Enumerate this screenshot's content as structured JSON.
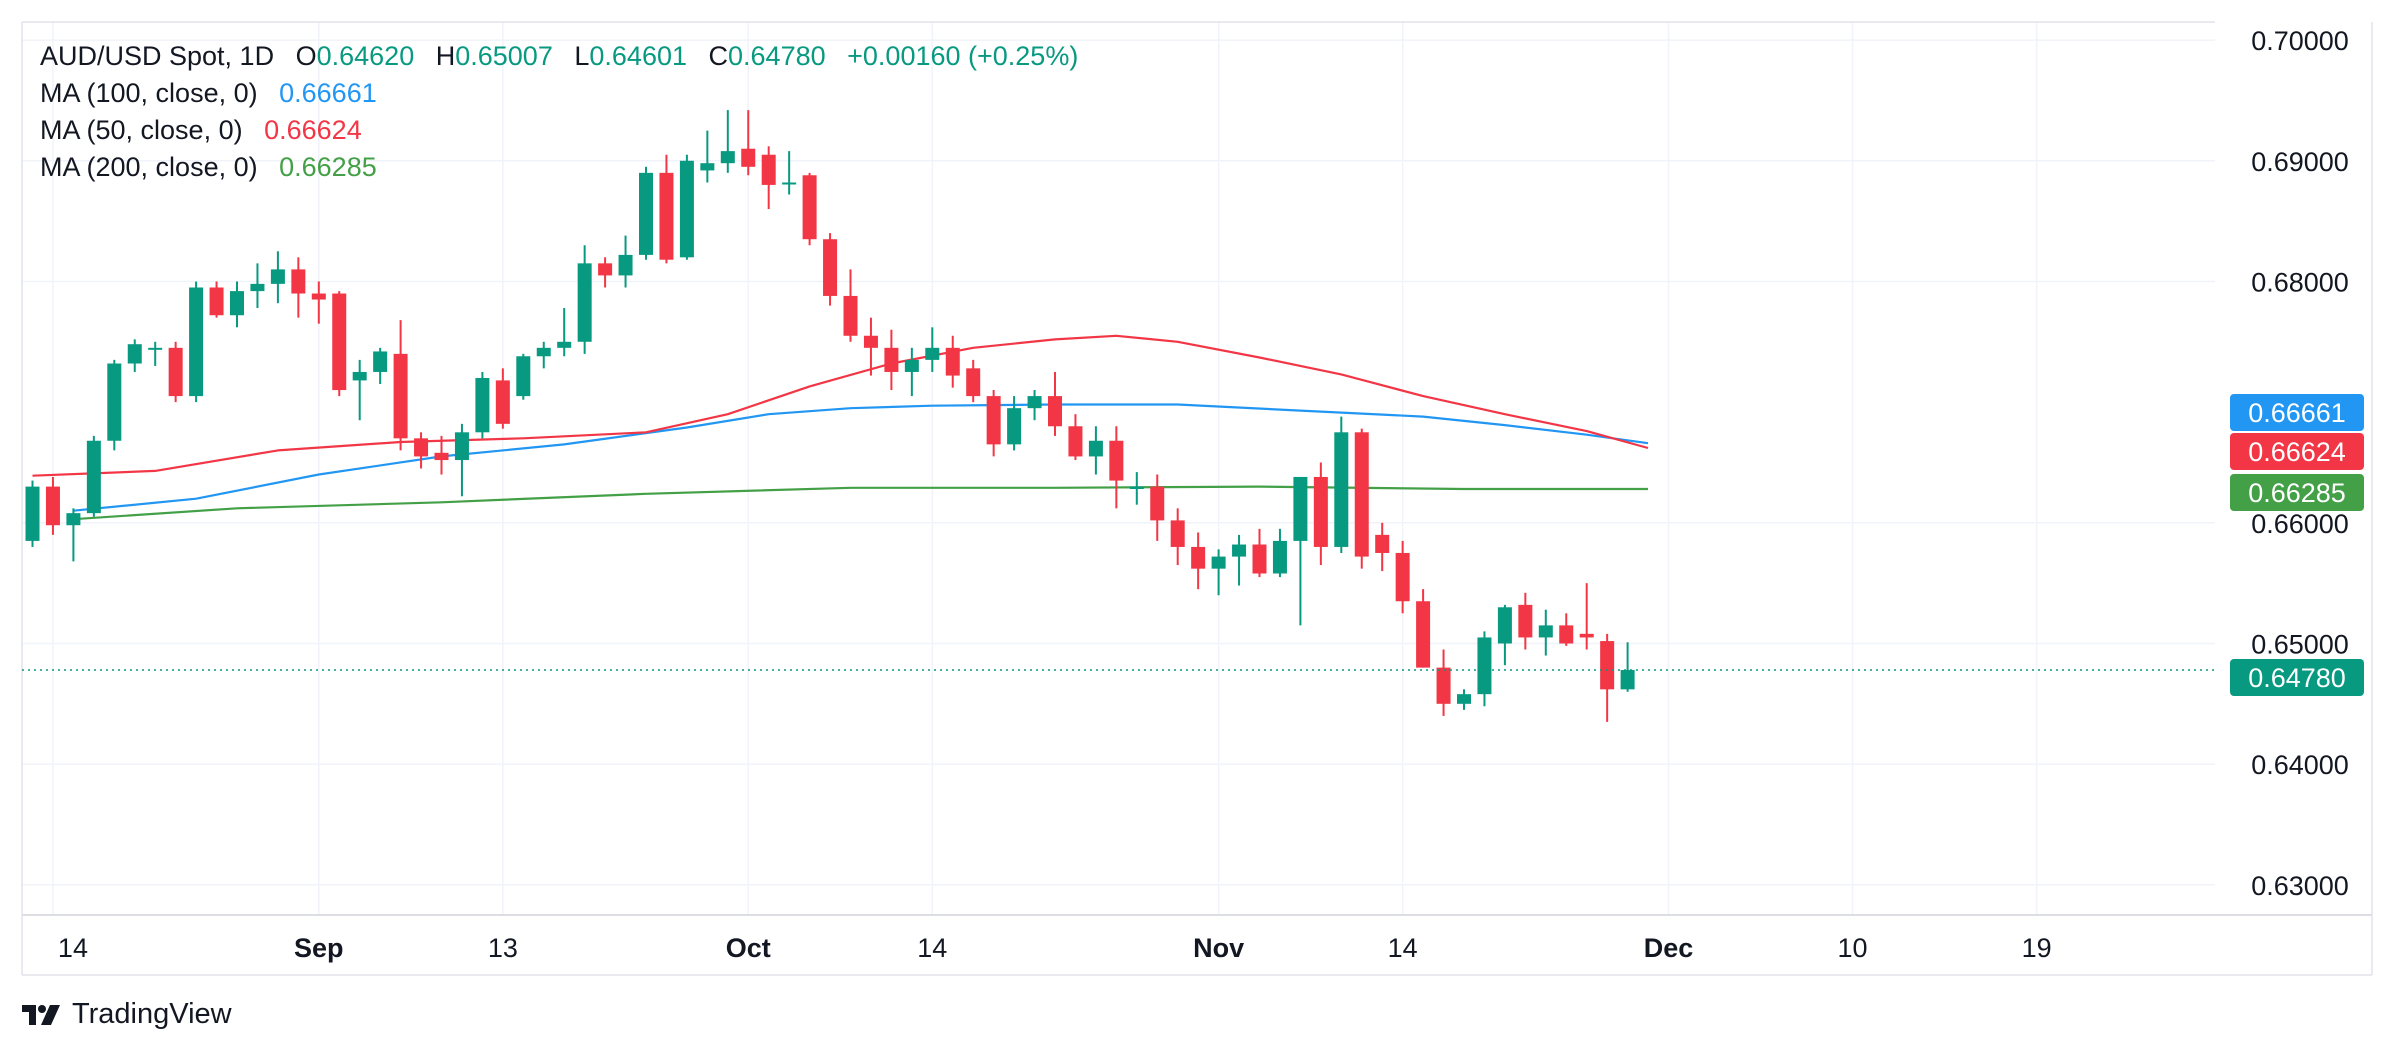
{
  "legend": {
    "symbol": "AUD/USD Spot, 1D",
    "open_label": "O",
    "open": "0.64620",
    "high_label": "H",
    "high": "0.65007",
    "low_label": "L",
    "low": "0.64601",
    "close_label": "C",
    "close": "0.64780",
    "change": "+0.00160 (+0.25%)",
    "ma100_label": "MA (100, close, 0)",
    "ma100_value": "0.66661",
    "ma50_label": "MA (50, close, 0)",
    "ma50_value": "0.66624",
    "ma200_label": "MA (200, close, 0)",
    "ma200_value": "0.66285"
  },
  "brand": {
    "name": "TradingView"
  },
  "colors": {
    "up": "#089981",
    "down": "#f23645",
    "ma100": "#2196f3",
    "ma50": "#f23645",
    "ma200": "#43a047",
    "grid": "#f0f3fa",
    "text": "#131722"
  },
  "chart_data": {
    "type": "candlestick",
    "title": "AUD/USD Spot, 1D",
    "ylim": [
      0.6275,
      0.7015
    ],
    "y_ticks": [
      "0.70000",
      "0.69000",
      "0.68000",
      "0.66000",
      "0.65000",
      "0.64000",
      "0.63000"
    ],
    "x_ticks": [
      {
        "label": "14",
        "bar": 1,
        "bold": false
      },
      {
        "label": "Sep",
        "bar": 14,
        "bold": true
      },
      {
        "label": "13",
        "bar": 23,
        "bold": false
      },
      {
        "label": "Oct",
        "bar": 35,
        "bold": true
      },
      {
        "label": "14",
        "bar": 44,
        "bold": false
      },
      {
        "label": "Nov",
        "bar": 58,
        "bold": true
      },
      {
        "label": "14",
        "bar": 67,
        "bold": false
      },
      {
        "label": "Dec",
        "bar": 80,
        "bold": true
      },
      {
        "label": "10",
        "bar": 89,
        "bold": false
      },
      {
        "label": "19",
        "bar": 98,
        "bold": false
      }
    ],
    "last_price": 0.6478,
    "price_labels": [
      {
        "name": "MA 100",
        "value": "0.66661",
        "color": "#2196f3",
        "y": 0.66661
      },
      {
        "name": "MA 50",
        "value": "0.66624",
        "color": "#f23645",
        "y": 0.66624
      },
      {
        "name": "MA 200",
        "value": "0.66285",
        "color": "#43a047",
        "y": 0.66285
      },
      {
        "name": "Close",
        "value": "0.64780",
        "color": "#089981",
        "y": 0.6478
      }
    ],
    "ohlc": [
      [
        0.6585,
        0.6635,
        0.658,
        0.663
      ],
      [
        0.663,
        0.6638,
        0.659,
        0.6598
      ],
      [
        0.6598,
        0.6612,
        0.6568,
        0.6608
      ],
      [
        0.6608,
        0.6672,
        0.6605,
        0.6668
      ],
      [
        0.6668,
        0.6735,
        0.666,
        0.6732
      ],
      [
        0.6732,
        0.6752,
        0.6725,
        0.6748
      ],
      [
        0.6745,
        0.675,
        0.673,
        0.6745
      ],
      [
        0.6745,
        0.675,
        0.67,
        0.6705
      ],
      [
        0.6705,
        0.68,
        0.67,
        0.6795
      ],
      [
        0.6795,
        0.68,
        0.677,
        0.6772
      ],
      [
        0.6772,
        0.68,
        0.6762,
        0.6792
      ],
      [
        0.6792,
        0.6815,
        0.6778,
        0.6798
      ],
      [
        0.6798,
        0.6825,
        0.6782,
        0.681
      ],
      [
        0.681,
        0.682,
        0.677,
        0.679
      ],
      [
        0.679,
        0.68,
        0.6765,
        0.6785
      ],
      [
        0.679,
        0.6792,
        0.6705,
        0.671
      ],
      [
        0.6718,
        0.6735,
        0.6685,
        0.6725
      ],
      [
        0.6725,
        0.6745,
        0.6715,
        0.6742
      ],
      [
        0.674,
        0.6768,
        0.666,
        0.667
      ],
      [
        0.667,
        0.6675,
        0.6645,
        0.6655
      ],
      [
        0.6658,
        0.6672,
        0.664,
        0.6652
      ],
      [
        0.6652,
        0.6682,
        0.6622,
        0.6675
      ],
      [
        0.6675,
        0.6725,
        0.667,
        0.672
      ],
      [
        0.6718,
        0.6728,
        0.6678,
        0.6682
      ],
      [
        0.6705,
        0.674,
        0.6702,
        0.6738
      ],
      [
        0.6738,
        0.675,
        0.6728,
        0.6745
      ],
      [
        0.6745,
        0.6778,
        0.6738,
        0.675
      ],
      [
        0.675,
        0.683,
        0.674,
        0.6815
      ],
      [
        0.6815,
        0.682,
        0.6795,
        0.6805
      ],
      [
        0.6805,
        0.6838,
        0.6795,
        0.6822
      ],
      [
        0.6822,
        0.6895,
        0.6818,
        0.689
      ],
      [
        0.689,
        0.6905,
        0.6815,
        0.6818
      ],
      [
        0.682,
        0.6905,
        0.6818,
        0.69
      ],
      [
        0.6892,
        0.6925,
        0.6882,
        0.6898
      ],
      [
        0.6898,
        0.6942,
        0.689,
        0.6908
      ],
      [
        0.691,
        0.6942,
        0.6888,
        0.6895
      ],
      [
        0.6905,
        0.6912,
        0.686,
        0.688
      ],
      [
        0.6882,
        0.6908,
        0.6872,
        0.6882
      ],
      [
        0.6888,
        0.689,
        0.683,
        0.6835
      ],
      [
        0.6835,
        0.684,
        0.678,
        0.6788
      ],
      [
        0.6788,
        0.681,
        0.675,
        0.6755
      ],
      [
        0.6755,
        0.677,
        0.6722,
        0.6745
      ],
      [
        0.6745,
        0.676,
        0.671,
        0.6725
      ],
      [
        0.6725,
        0.6745,
        0.6705,
        0.6735
      ],
      [
        0.6735,
        0.6762,
        0.6725,
        0.6745
      ],
      [
        0.6745,
        0.6755,
        0.6712,
        0.6722
      ],
      [
        0.6728,
        0.6735,
        0.67,
        0.6705
      ],
      [
        0.6705,
        0.671,
        0.6655,
        0.6665
      ],
      [
        0.6665,
        0.6705,
        0.666,
        0.6695
      ],
      [
        0.6695,
        0.671,
        0.6685,
        0.6705
      ],
      [
        0.6705,
        0.6725,
        0.6672,
        0.668
      ],
      [
        0.668,
        0.669,
        0.6652,
        0.6655
      ],
      [
        0.6655,
        0.668,
        0.664,
        0.6668
      ],
      [
        0.6668,
        0.668,
        0.6612,
        0.6635
      ],
      [
        0.6628,
        0.6642,
        0.6615,
        0.663
      ],
      [
        0.663,
        0.664,
        0.6585,
        0.6602
      ],
      [
        0.6602,
        0.6612,
        0.6565,
        0.658
      ],
      [
        0.658,
        0.6592,
        0.6545,
        0.6562
      ],
      [
        0.6562,
        0.6578,
        0.654,
        0.6572
      ],
      [
        0.6572,
        0.659,
        0.6548,
        0.6582
      ],
      [
        0.6582,
        0.6595,
        0.6555,
        0.6558
      ],
      [
        0.6558,
        0.6595,
        0.6555,
        0.6585
      ],
      [
        0.6585,
        0.6635,
        0.6515,
        0.6638
      ],
      [
        0.6638,
        0.665,
        0.6565,
        0.658
      ],
      [
        0.658,
        0.6688,
        0.6575,
        0.6675
      ],
      [
        0.6675,
        0.6678,
        0.6562,
        0.6572
      ],
      [
        0.659,
        0.66,
        0.656,
        0.6575
      ],
      [
        0.6575,
        0.6585,
        0.6525,
        0.6535
      ],
      [
        0.6535,
        0.6545,
        0.648,
        0.648
      ],
      [
        0.648,
        0.6495,
        0.644,
        0.645
      ],
      [
        0.645,
        0.6462,
        0.6445,
        0.6458
      ],
      [
        0.6458,
        0.651,
        0.6448,
        0.6505
      ],
      [
        0.65,
        0.6532,
        0.6482,
        0.653
      ],
      [
        0.6532,
        0.6542,
        0.6495,
        0.6505
      ],
      [
        0.6505,
        0.6528,
        0.649,
        0.6515
      ],
      [
        0.6515,
        0.6525,
        0.6498,
        0.65
      ],
      [
        0.6508,
        0.655,
        0.6495,
        0.6505
      ],
      [
        0.6502,
        0.6508,
        0.6435,
        0.6462
      ],
      [
        0.6462,
        0.6501,
        0.646,
        0.6478
      ]
    ],
    "ma50": [
      [
        0,
        0.6639
      ],
      [
        6,
        0.6643
      ],
      [
        12,
        0.666
      ],
      [
        18,
        0.6667
      ],
      [
        24,
        0.667
      ],
      [
        30,
        0.6675
      ],
      [
        34,
        0.669
      ],
      [
        38,
        0.6713
      ],
      [
        42,
        0.6732
      ],
      [
        46,
        0.6745
      ],
      [
        50,
        0.6752
      ],
      [
        53,
        0.6755
      ],
      [
        56,
        0.675
      ],
      [
        60,
        0.6737
      ],
      [
        64,
        0.6723
      ],
      [
        68,
        0.6705
      ],
      [
        72,
        0.669
      ],
      [
        76,
        0.6676
      ],
      [
        79,
        0.6662
      ]
    ],
    "ma100": [
      [
        2,
        0.661
      ],
      [
        8,
        0.662
      ],
      [
        14,
        0.664
      ],
      [
        20,
        0.6655
      ],
      [
        26,
        0.6665
      ],
      [
        32,
        0.6679
      ],
      [
        36,
        0.669
      ],
      [
        40,
        0.6695
      ],
      [
        44,
        0.6697
      ],
      [
        50,
        0.6698
      ],
      [
        56,
        0.6698
      ],
      [
        62,
        0.6693
      ],
      [
        68,
        0.6688
      ],
      [
        72,
        0.6681
      ],
      [
        76,
        0.6673
      ],
      [
        79,
        0.6666
      ]
    ],
    "ma200": [
      [
        2,
        0.6603
      ],
      [
        10,
        0.6612
      ],
      [
        20,
        0.6617
      ],
      [
        30,
        0.6624
      ],
      [
        40,
        0.6629
      ],
      [
        50,
        0.6629
      ],
      [
        60,
        0.663
      ],
      [
        70,
        0.6628
      ],
      [
        79,
        0.6628
      ]
    ]
  }
}
